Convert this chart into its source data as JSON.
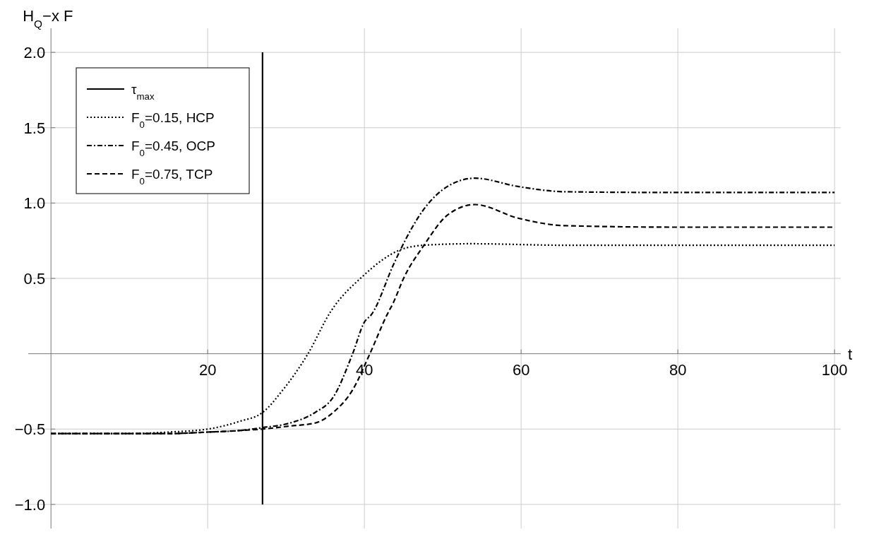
{
  "chart_data": {
    "type": "line",
    "ylabel": "H$_{Q}$−x F",
    "xlabel": "t",
    "xlim": [
      -2.9,
      100.8
    ],
    "ylim": [
      -1.16,
      2.16
    ],
    "xticks": [
      20,
      40,
      60,
      80,
      100
    ],
    "yticks": [
      {
        "value": -1.0,
        "label": "−1.0"
      },
      {
        "value": -0.5,
        "label": "−0.5"
      },
      {
        "value": 0.5,
        "label": "0.5"
      },
      {
        "value": 1.0,
        "label": "1.0"
      },
      {
        "value": 1.5,
        "label": "1.5"
      },
      {
        "value": 2.0,
        "label": "2.0"
      }
    ],
    "grid": true,
    "legend": "top left",
    "marker": "none",
    "series": [
      {
        "name": "τ$_{max}$",
        "color": "#000000",
        "line_style": "solid",
        "x": [
          27,
          27
        ],
        "values": [
          -1.0,
          2.0
        ]
      },
      {
        "name": "F$_{0}$=0.15, HCP",
        "color": "#000000",
        "line_style": "dotted",
        "x": [
          0,
          10,
          15,
          20,
          24,
          27,
          29.6,
          32.8,
          35.7,
          39.7,
          44.6,
          47.6,
          53.6,
          65.6,
          80,
          100
        ],
        "values": [
          -0.53,
          -0.53,
          -0.52,
          -0.5,
          -0.45,
          -0.39,
          -0.24,
          0,
          0.28,
          0.51,
          0.69,
          0.72,
          0.73,
          0.72,
          0.72,
          0.72
        ]
      },
      {
        "name": "F$_{0}$=0.45, OCP",
        "color": "#000000",
        "line_style": "dashdot",
        "x": [
          0,
          10,
          15,
          20,
          24,
          27,
          30.5,
          33.7,
          36,
          38.5,
          40,
          40.9,
          43.7,
          44.6,
          47.6,
          50.6,
          54.1,
          59.6,
          65.6,
          80,
          100
        ],
        "values": [
          -0.53,
          -0.53,
          -0.53,
          -0.52,
          -0.51,
          -0.49,
          -0.46,
          -0.39,
          -0.29,
          0,
          0.21,
          0.26,
          0.59,
          0.69,
          0.96,
          1.11,
          1.165,
          1.11,
          1.075,
          1.07,
          1.07
        ]
      },
      {
        "name": "F$_{0}$=0.75, TCP",
        "color": "#000000",
        "line_style": "dashed",
        "x": [
          0,
          10,
          15,
          20,
          24,
          27,
          30.5,
          33.7,
          36,
          38.5,
          40.7,
          42.9,
          43.7,
          45,
          47.6,
          50.6,
          54.1,
          59.6,
          65.6,
          80,
          100
        ],
        "values": [
          -0.53,
          -0.53,
          -0.53,
          -0.52,
          -0.51,
          -0.5,
          -0.48,
          -0.46,
          -0.39,
          -0.24,
          0,
          0.26,
          0.34,
          0.5,
          0.72,
          0.92,
          0.99,
          0.9,
          0.85,
          0.84,
          0.84
        ]
      }
    ]
  }
}
